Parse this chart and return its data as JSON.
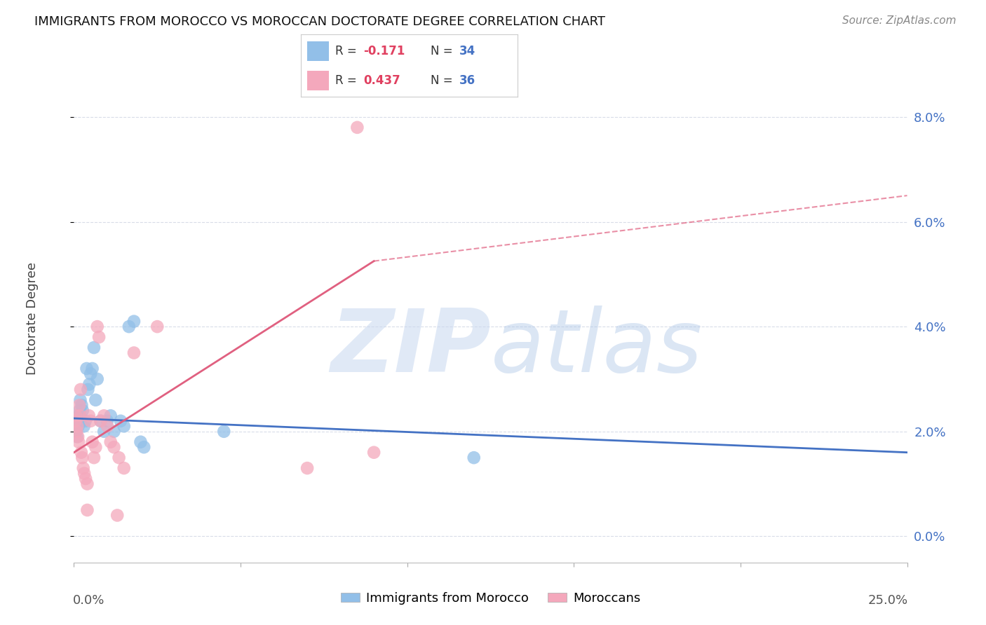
{
  "title": "IMMIGRANTS FROM MOROCCO VS MOROCCAN DOCTORATE DEGREE CORRELATION CHART",
  "source": "Source: ZipAtlas.com",
  "ylabel": "Doctorate Degree",
  "xmin": 0.0,
  "xmax": 25.0,
  "ymin": -0.5,
  "ymax": 8.8,
  "ytick_vals": [
    0.0,
    2.0,
    4.0,
    6.0,
    8.0
  ],
  "xtick_positions": [
    0,
    5,
    10,
    15,
    20,
    25
  ],
  "blue_R": "-0.171",
  "blue_N": "34",
  "pink_R": "0.437",
  "pink_N": "36",
  "blue_scatter_x": [
    0.05,
    0.07,
    0.09,
    0.11,
    0.13,
    0.15,
    0.17,
    0.19,
    0.21,
    0.23,
    0.26,
    0.3,
    0.34,
    0.38,
    0.42,
    0.46,
    0.5,
    0.55,
    0.6,
    0.65,
    0.7,
    0.8,
    0.9,
    1.0,
    1.1,
    1.2,
    1.4,
    1.5,
    1.65,
    1.8,
    2.0,
    2.1,
    4.5,
    12.0
  ],
  "blue_scatter_y": [
    2.1,
    2.0,
    1.9,
    2.2,
    2.1,
    2.3,
    2.4,
    2.6,
    2.2,
    2.5,
    2.4,
    2.1,
    2.2,
    3.2,
    2.8,
    2.9,
    3.1,
    3.2,
    3.6,
    2.6,
    3.0,
    2.2,
    2.0,
    2.2,
    2.3,
    2.0,
    2.2,
    2.1,
    4.0,
    4.1,
    1.8,
    1.7,
    2.0,
    1.5
  ],
  "pink_scatter_x": [
    0.04,
    0.06,
    0.08,
    0.1,
    0.12,
    0.14,
    0.16,
    0.18,
    0.2,
    0.22,
    0.25,
    0.28,
    0.31,
    0.35,
    0.4,
    0.45,
    0.5,
    0.55,
    0.6,
    0.65,
    0.7,
    0.75,
    0.8,
    0.9,
    1.0,
    1.1,
    1.2,
    1.35,
    1.5,
    1.8,
    2.5,
    7.0,
    9.0,
    1.3,
    0.4,
    8.5
  ],
  "pink_scatter_y": [
    2.2,
    2.3,
    2.0,
    2.1,
    1.9,
    1.8,
    2.5,
    2.3,
    2.8,
    1.6,
    1.5,
    1.3,
    1.2,
    1.1,
    1.0,
    2.3,
    2.2,
    1.8,
    1.5,
    1.7,
    4.0,
    3.8,
    2.2,
    2.3,
    2.1,
    1.8,
    1.7,
    1.5,
    1.3,
    3.5,
    4.0,
    1.3,
    1.6,
    0.4,
    0.5,
    7.8
  ],
  "blue_line_x0": 0.0,
  "blue_line_y0": 2.25,
  "blue_line_x1": 25.0,
  "blue_line_y1": 1.6,
  "pink_solid_x0": 0.0,
  "pink_solid_y0": 1.6,
  "pink_solid_x1": 9.0,
  "pink_solid_y1": 5.25,
  "pink_dash_x0": 9.0,
  "pink_dash_y0": 5.25,
  "pink_dash_x1": 25.0,
  "pink_dash_y1": 6.5,
  "blue_color": "#92bfe8",
  "blue_line_color": "#4472c4",
  "pink_color": "#f4a8bc",
  "pink_line_color": "#e06080",
  "watermark_color": "#c8d8f0",
  "grid_color": "#d8dce8",
  "legend_label_blue": "Immigrants from Morocco",
  "legend_label_pink": "Moroccans",
  "background_color": "#ffffff",
  "title_fontsize": 13,
  "source_fontsize": 11,
  "tick_label_fontsize": 13,
  "ylabel_fontsize": 13
}
